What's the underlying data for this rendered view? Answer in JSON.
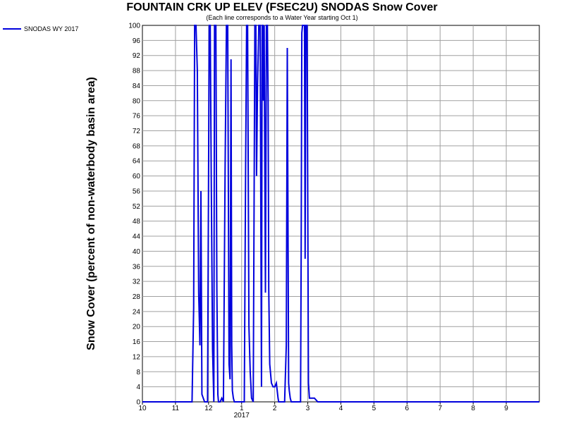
{
  "chart_data": {
    "type": "line",
    "title": "FOUNTAIN CRK UP ELEV (FSEC2U) SNODAS Snow Cover",
    "subtitle": "(Each line corresponds to a Water Year starting Oct 1)",
    "ylabel": "Snow Cover (percent of non-waterbody basin area)",
    "xlabel": "",
    "ylim": [
      0,
      100
    ],
    "y_ticks": [
      0,
      4,
      8,
      12,
      16,
      20,
      24,
      28,
      32,
      36,
      40,
      44,
      48,
      52,
      56,
      60,
      64,
      68,
      72,
      76,
      80,
      84,
      88,
      92,
      96,
      100
    ],
    "xlim": [
      0,
      12
    ],
    "x_ticks": [
      {
        "x": 0,
        "label": "10"
      },
      {
        "x": 1,
        "label": "11"
      },
      {
        "x": 2,
        "label": "12"
      },
      {
        "x": 3,
        "label": "1"
      },
      {
        "x": 4,
        "label": "2"
      },
      {
        "x": 5,
        "label": "3"
      },
      {
        "x": 6,
        "label": "4"
      },
      {
        "x": 7,
        "label": "5"
      },
      {
        "x": 8,
        "label": "6"
      },
      {
        "x": 9,
        "label": "7"
      },
      {
        "x": 10,
        "label": "8"
      },
      {
        "x": 11,
        "label": "9"
      }
    ],
    "x_sublabel": "2017",
    "grid": true,
    "legend_position": "top-left",
    "series": [
      {
        "name": "SNODAS WY 2017",
        "color": "#0000dd",
        "x": [
          0.0,
          1.5,
          1.55,
          1.58,
          1.62,
          1.66,
          1.7,
          1.74,
          1.77,
          1.8,
          1.84,
          1.88,
          1.92,
          1.97,
          2.02,
          2.05,
          2.08,
          2.12,
          2.16,
          2.18,
          2.22,
          2.25,
          2.28,
          2.3,
          2.32,
          2.35,
          2.4,
          2.45,
          2.5,
          2.54,
          2.58,
          2.62,
          2.65,
          2.68,
          2.7,
          2.72,
          2.75,
          2.78,
          2.82,
          2.86,
          2.9,
          2.95,
          3.0,
          3.08,
          3.12,
          3.15,
          3.18,
          3.22,
          3.26,
          3.3,
          3.35,
          3.4,
          3.43,
          3.45,
          3.48,
          3.52,
          3.56,
          3.6,
          3.62,
          3.64,
          3.66,
          3.68,
          3.72,
          3.75,
          3.78,
          3.8,
          3.82,
          3.85,
          3.9,
          3.95,
          4.0,
          4.05,
          4.1,
          4.12,
          4.15,
          4.2,
          4.3,
          4.35,
          4.38,
          4.42,
          4.44,
          4.47,
          4.5,
          4.55,
          4.6,
          4.7,
          4.75,
          4.78,
          4.8,
          4.82,
          4.84,
          4.86,
          4.88,
          4.9,
          4.92,
          4.94,
          4.96,
          4.98,
          5.02,
          5.05,
          5.1,
          5.2,
          5.3,
          5.4,
          5.8,
          12.0
        ],
        "values": [
          0,
          0,
          25,
          100,
          100,
          88,
          29,
          15,
          56,
          2,
          1,
          0,
          0,
          0,
          100,
          100,
          60,
          14,
          0,
          100,
          100,
          30,
          2,
          0,
          0,
          0,
          1,
          0,
          62,
          100,
          100,
          10,
          6,
          91,
          15,
          3,
          1,
          0,
          0,
          0,
          0,
          0,
          0,
          0,
          62,
          100,
          100,
          20,
          8,
          1,
          0,
          100,
          100,
          60,
          84,
          100,
          100,
          4,
          100,
          100,
          80,
          100,
          29,
          100,
          100,
          80,
          30,
          10,
          5,
          4,
          4,
          5,
          1,
          0,
          0,
          0,
          0,
          15,
          94,
          5,
          3,
          1,
          0,
          0,
          0,
          0,
          0,
          0,
          40,
          98,
          100,
          100,
          100,
          100,
          38,
          100,
          100,
          100,
          5,
          1,
          1,
          1,
          0,
          0,
          0,
          0
        ]
      }
    ]
  }
}
